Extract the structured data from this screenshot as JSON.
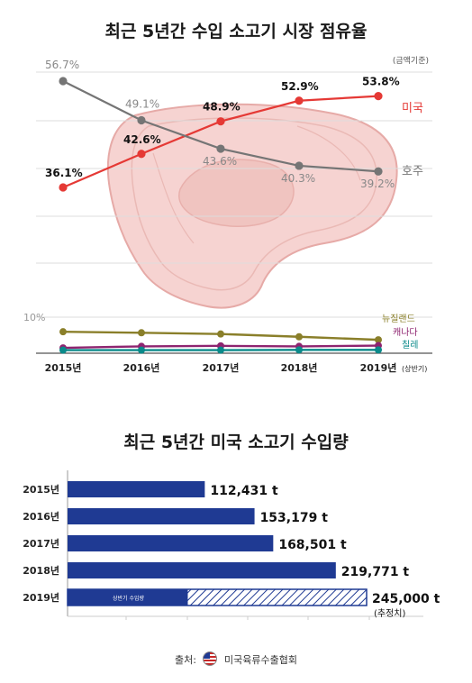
{
  "header": {
    "title1": "최근 5년간 수입 소고기 시장 점유율",
    "unit": "(금액기준)",
    "title2": "최근 5년간 미국 소고기 수입량"
  },
  "source": {
    "label": "출처:",
    "org": "미국육류수출협회"
  },
  "chart_data": [
    {
      "type": "line",
      "title": "최근 5년간 수입 소고기 시장 점유율",
      "categories": [
        "2015년",
        "2016년",
        "2017년",
        "2018년",
        "2019년"
      ],
      "category_note": "(상반기)",
      "ytick_label": "10%",
      "series": [
        {
          "name": "미국",
          "values": [
            36.1,
            42.6,
            48.9,
            52.9,
            53.8
          ],
          "labels": [
            "36.1%",
            "42.6%",
            "48.9%",
            "52.9%",
            "53.8%"
          ],
          "color": "#e53935"
        },
        {
          "name": "호주",
          "values": [
            56.7,
            49.1,
            43.6,
            40.3,
            39.2
          ],
          "labels": [
            "56.7%",
            "49.1%",
            "43.6%",
            "40.3%",
            "39.2%"
          ],
          "color": "#757575"
        },
        {
          "name": "뉴질랜드",
          "values": [
            7.8,
            7.4,
            6.9,
            5.8,
            4.6
          ],
          "color": "#8a7f2a"
        },
        {
          "name": "캐나다",
          "values": [
            1.4,
            2.0,
            2.2,
            2.0,
            2.3
          ],
          "color": "#8e2470"
        },
        {
          "name": "칠레",
          "values": [
            0.5,
            0.5,
            0.5,
            0.6,
            0.6
          ],
          "color": "#0a8a8a"
        }
      ]
    },
    {
      "type": "bar",
      "title": "최근 5년간 미국 소고기 수입량",
      "categories": [
        "2015년",
        "2016년",
        "2017년",
        "2018년",
        "2019년"
      ],
      "values": [
        112431,
        153179,
        168501,
        219771,
        245000
      ],
      "labels": [
        "112,431 t",
        "153,179 t",
        "168,501 t",
        "219,771 t",
        "245,000 t"
      ],
      "partial_2019": {
        "value": 98500,
        "label": "상반기 수입량",
        "estimate_note": "(추정치)"
      },
      "color": "#1f3a93"
    }
  ]
}
